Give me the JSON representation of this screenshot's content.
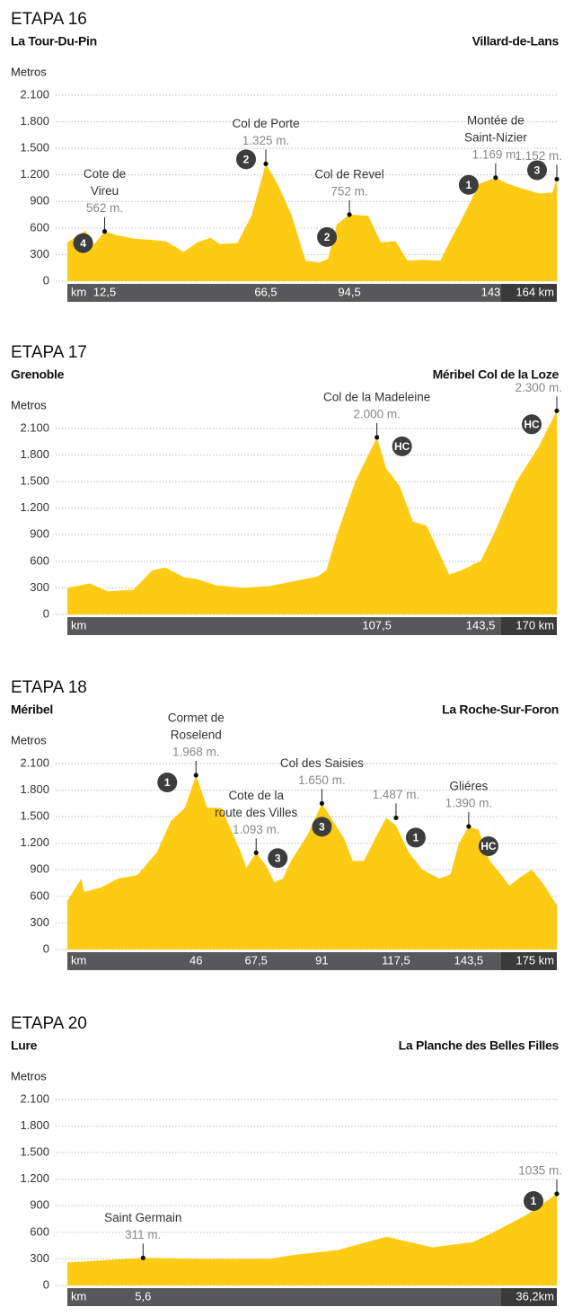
{
  "chart_data": [
    {
      "type": "area",
      "title": "ETAPA 16",
      "start": "La Tour-Du-Pin",
      "finish": "Villard-de-Lans",
      "y_label": "Metros",
      "x_label": "km",
      "color": "#fdca14",
      "ylim": [
        0,
        2400
      ],
      "yticks": [
        0,
        300,
        600,
        900,
        {
          "value": 1200,
          "label": "1.200"
        },
        {
          "value": 1500,
          "label": "1.500"
        },
        {
          "value": 1800,
          "label": "1.800"
        },
        {
          "value": 2100,
          "label": "2.100"
        }
      ],
      "xlim": [
        0,
        164
      ],
      "xticks": [
        {
          "value": 12.5,
          "label": "12,5"
        },
        {
          "value": 66.5,
          "label": "66,5"
        },
        {
          "value": 94.5,
          "label": "94,5"
        },
        {
          "value": 143.5,
          "label": "143,5"
        },
        {
          "value": 164,
          "label": "164 km"
        }
      ],
      "x": [
        0,
        6,
        9,
        12.5,
        16.5,
        22.6,
        27,
        33,
        39,
        43.6,
        48,
        51,
        57,
        61.7,
        66.5,
        70.7,
        75.2,
        79.8,
        84.3,
        87.3,
        90.3,
        94.5,
        100.8,
        105,
        110,
        114,
        119,
        125,
        128,
        132,
        138,
        143.5,
        147.5,
        152,
        158,
        162.5,
        164
      ],
      "values": [
        436,
        570,
        415,
        562,
        520,
        480,
        470,
        450,
        330,
        440,
        490,
        420,
        430,
        740,
        1325,
        1080,
        740,
        230,
        210,
        250,
        640,
        752,
        740,
        440,
        450,
        230,
        240,
        230,
        440,
        690,
        1100,
        1169,
        1100,
        1050,
        990,
        1000,
        1152
      ],
      "annotations": [
        {
          "name": [
            "Cote de",
            "Vireu"
          ],
          "altitude": 562,
          "altitude_label": "562 m.",
          "km": 12.5,
          "category": "4"
        },
        {
          "name": [
            "Col de Porte"
          ],
          "altitude": 1325,
          "altitude_label": "1.325 m.",
          "km": 66.5,
          "category": "2"
        },
        {
          "name": [
            "Col de Revel"
          ],
          "altitude": 752,
          "altitude_label": "752 m.",
          "km": 94.5,
          "category": "2"
        },
        {
          "name": [
            "Montée de",
            "Saint-Nizier"
          ],
          "altitude": 1169,
          "altitude_label": "1.169 m.",
          "km": 143.5,
          "category": "1"
        },
        {
          "altitude": 1152,
          "altitude_label": "1.152 m.",
          "km": 164,
          "category": "3"
        }
      ]
    },
    {
      "type": "area",
      "title": "ETAPA 17",
      "start": "Grenoble",
      "finish": "Méribel Col de la Loze",
      "y_label": "Metros",
      "x_label": "km",
      "color": "#fdca14",
      "ylim": [
        0,
        2400
      ],
      "yticks": [
        0,
        300,
        600,
        900,
        {
          "value": 1200,
          "label": "1.200"
        },
        {
          "value": 1500,
          "label": "1.500"
        },
        {
          "value": 1800,
          "label": "1.800"
        },
        {
          "value": 2100,
          "label": "2.100"
        }
      ],
      "xlim": [
        0,
        170
      ],
      "xticks": [
        {
          "value": 107.5,
          "label": "107,5"
        },
        {
          "value": 143.5,
          "label": "143,5"
        },
        {
          "value": 170,
          "label": "170 km"
        }
      ],
      "x": [
        0,
        7.8,
        14,
        23,
        29.6,
        34,
        40.5,
        45,
        51.5,
        61,
        70,
        79.5,
        87,
        90,
        93.6,
        100,
        107.5,
        110.7,
        115.4,
        120,
        124.8,
        132.6,
        137,
        142,
        143.5,
        148,
        156,
        163.8,
        170
      ],
      "values": [
        300,
        350,
        260,
        280,
        500,
        530,
        420,
        400,
        330,
        300,
        320,
        380,
        430,
        500,
        900,
        1500,
        2000,
        1650,
        1450,
        1050,
        1000,
        450,
        500,
        580,
        600,
        900,
        1500,
        1900,
        2300
      ],
      "annotations": [
        {
          "name": [
            "Col de la Madeleine"
          ],
          "altitude": 2000,
          "altitude_label": "2.000 m.",
          "km": 107.5,
          "category": "HC"
        },
        {
          "altitude": 2300,
          "altitude_label": "2.300 m.",
          "km": 170,
          "category": "HC"
        }
      ]
    },
    {
      "type": "area",
      "title": "ETAPA 18",
      "start": "Méribel",
      "finish": "La Roche-Sur-Foron",
      "y_label": "Metros",
      "x_label": "km",
      "color": "#fdca14",
      "ylim": [
        0,
        2400
      ],
      "yticks": [
        0,
        300,
        600,
        900,
        {
          "value": 1200,
          "label": "1.200"
        },
        {
          "value": 1500,
          "label": "1.500"
        },
        {
          "value": 1800,
          "label": "1.800"
        },
        {
          "value": 2100,
          "label": "2.100"
        }
      ],
      "xlim": [
        0,
        175
      ],
      "xticks": [
        46,
        {
          "value": 67.5,
          "label": "67,5"
        },
        91,
        {
          "value": 117.5,
          "label": "117,5"
        },
        {
          "value": 143.5,
          "label": "143,5"
        },
        {
          "value": 175,
          "label": "175 km"
        }
      ],
      "x": [
        0,
        5,
        6,
        12,
        18,
        25,
        32,
        37,
        42,
        46,
        50,
        55,
        62,
        64,
        67.5,
        71,
        74,
        77,
        80,
        86,
        91,
        95,
        99,
        102,
        106,
        110,
        114,
        117.5,
        122,
        127,
        133,
        137,
        140,
        143.5,
        147,
        151,
        155,
        158,
        162,
        166,
        170,
        175
      ],
      "values": [
        550,
        800,
        650,
        700,
        800,
        840,
        1100,
        1450,
        1600,
        1968,
        1600,
        1600,
        1100,
        920,
        1093,
        950,
        760,
        800,
        1000,
        1300,
        1650,
        1450,
        1250,
        1000,
        1000,
        1250,
        1487,
        1400,
        1100,
        900,
        800,
        850,
        1200,
        1390,
        1350,
        1000,
        850,
        720,
        820,
        900,
        750,
        500
      ],
      "annotations": [
        {
          "name": [
            "Cormet de",
            "Roselend"
          ],
          "altitude": 1968,
          "altitude_label": "1.968 m.",
          "km": 46,
          "category": "1"
        },
        {
          "name": [
            "Cote de la",
            "route des Villes"
          ],
          "altitude": 1093,
          "altitude_label": "1.093 m.",
          "km": 67.5,
          "category": "3"
        },
        {
          "name": [
            "Col des Saisies"
          ],
          "altitude": 1650,
          "altitude_label": "1.650 m.",
          "km": 91,
          "category": "3"
        },
        {
          "altitude": 1487,
          "altitude_label": "1.487 m.",
          "km": 117.5,
          "category": "1"
        },
        {
          "name": [
            "Gliéres"
          ],
          "altitude": 1390,
          "altitude_label": "1.390 m.",
          "km": 143.5,
          "category": "HC"
        }
      ]
    },
    {
      "type": "area",
      "title": "ETAPA 20",
      "start": "Lure",
      "finish": "La Planche des Belles Filles",
      "y_label": "Metros",
      "x_label": "km",
      "color": "#fdca14",
      "ylim": [
        0,
        2400
      ],
      "yticks": [
        0,
        300,
        600,
        900,
        {
          "value": 1200,
          "label": "1.200"
        },
        {
          "value": 1500,
          "label": "1.500"
        },
        {
          "value": 1800,
          "label": "1.800"
        },
        {
          "value": 2100,
          "label": "2.100"
        }
      ],
      "xlim": [
        0,
        36.2
      ],
      "xticks": [
        {
          "value": 5.6,
          "label": "5,6"
        },
        {
          "value": 36.2,
          "label": "36,2km"
        }
      ],
      "x": [
        0,
        5.6,
        10,
        15,
        16.5,
        20,
        23.6,
        27,
        30,
        31.5,
        34,
        36.2
      ],
      "values": [
        260,
        311,
        300,
        300,
        340,
        400,
        550,
        430,
        490,
        600,
        800,
        1035
      ],
      "annotations": [
        {
          "name": [
            "Saint Germain"
          ],
          "altitude": 311,
          "altitude_label": "311 m.",
          "km": 5.6
        },
        {
          "altitude": 1035,
          "altitude_label": "1035 m.",
          "km": 36.2,
          "category": "1"
        }
      ]
    }
  ]
}
